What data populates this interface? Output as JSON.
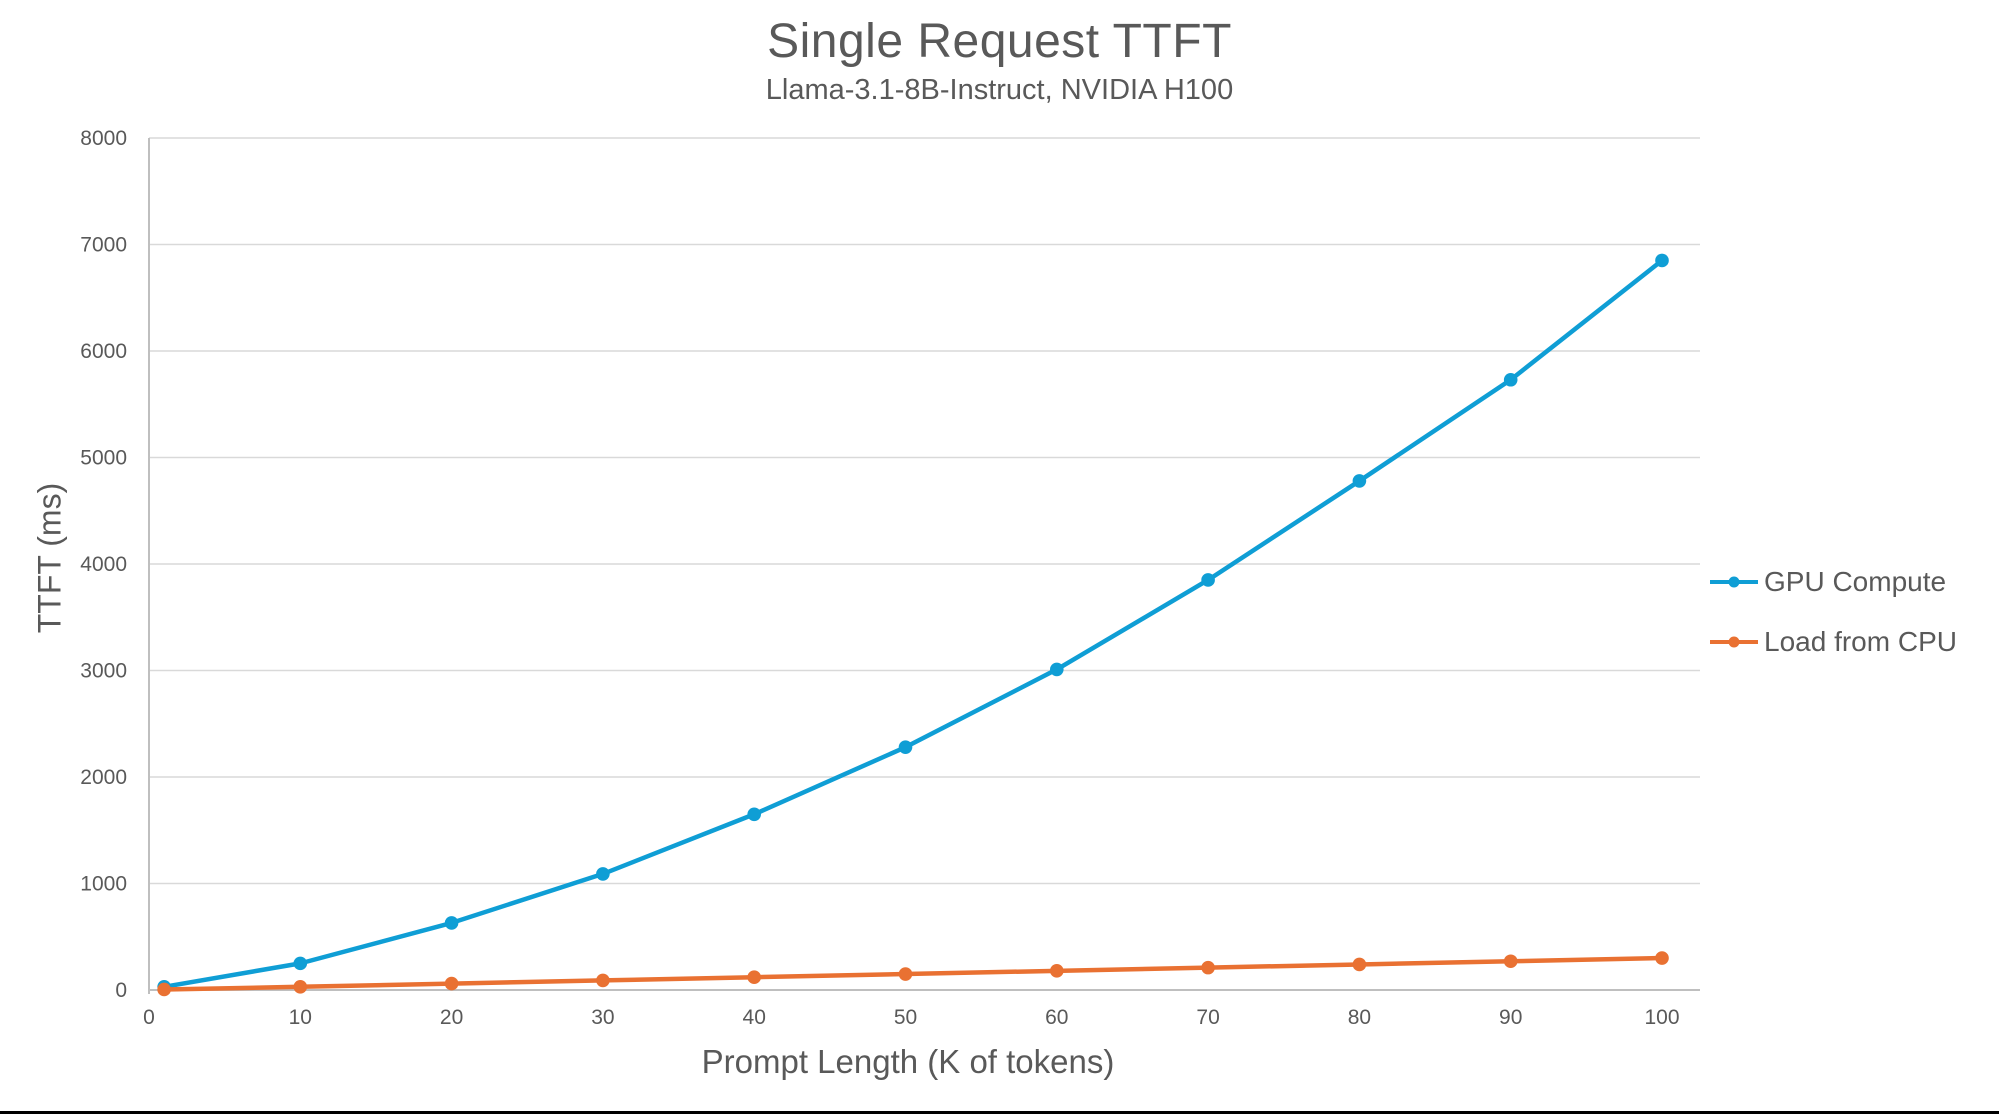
{
  "chart": {
    "title": "Single Request TTFT",
    "subtitle": "Llama-3.1-8B-Instruct, NVIDIA H100",
    "xlabel": "Prompt Length (K of tokens)",
    "ylabel": "TTFT (ms)"
  },
  "chart_data": {
    "type": "line",
    "title": "Single Request TTFT",
    "subtitle": "Llama-3.1-8B-Instruct, NVIDIA H100",
    "xlabel": "Prompt Length (K of tokens)",
    "ylabel": "TTFT (ms)",
    "x": [
      1,
      10,
      20,
      30,
      40,
      50,
      60,
      70,
      80,
      90,
      100
    ],
    "series": [
      {
        "name": "GPU Compute",
        "color": "#0F9ED5",
        "values": [
          30,
          250,
          630,
          1090,
          1650,
          2280,
          3010,
          3850,
          4780,
          5730,
          6850
        ]
      },
      {
        "name": "Load from CPU",
        "color": "#E97132",
        "values": [
          5,
          30,
          60,
          90,
          120,
          150,
          180,
          210,
          240,
          270,
          300
        ]
      }
    ],
    "xlim": [
      0,
      100
    ],
    "ylim": [
      0,
      8000
    ],
    "xticks": [
      0,
      10,
      20,
      30,
      40,
      50,
      60,
      70,
      80,
      90,
      100
    ],
    "yticks": [
      0,
      1000,
      2000,
      3000,
      4000,
      5000,
      6000,
      7000,
      8000
    ],
    "grid": "horizontal-only",
    "legend_position": "right",
    "colors": {
      "text": "#595959",
      "gridline": "#D9D9D9",
      "axis_line": "#BFBFBF",
      "background": "#FFFFFF",
      "bottom_bar": "#000000"
    }
  }
}
